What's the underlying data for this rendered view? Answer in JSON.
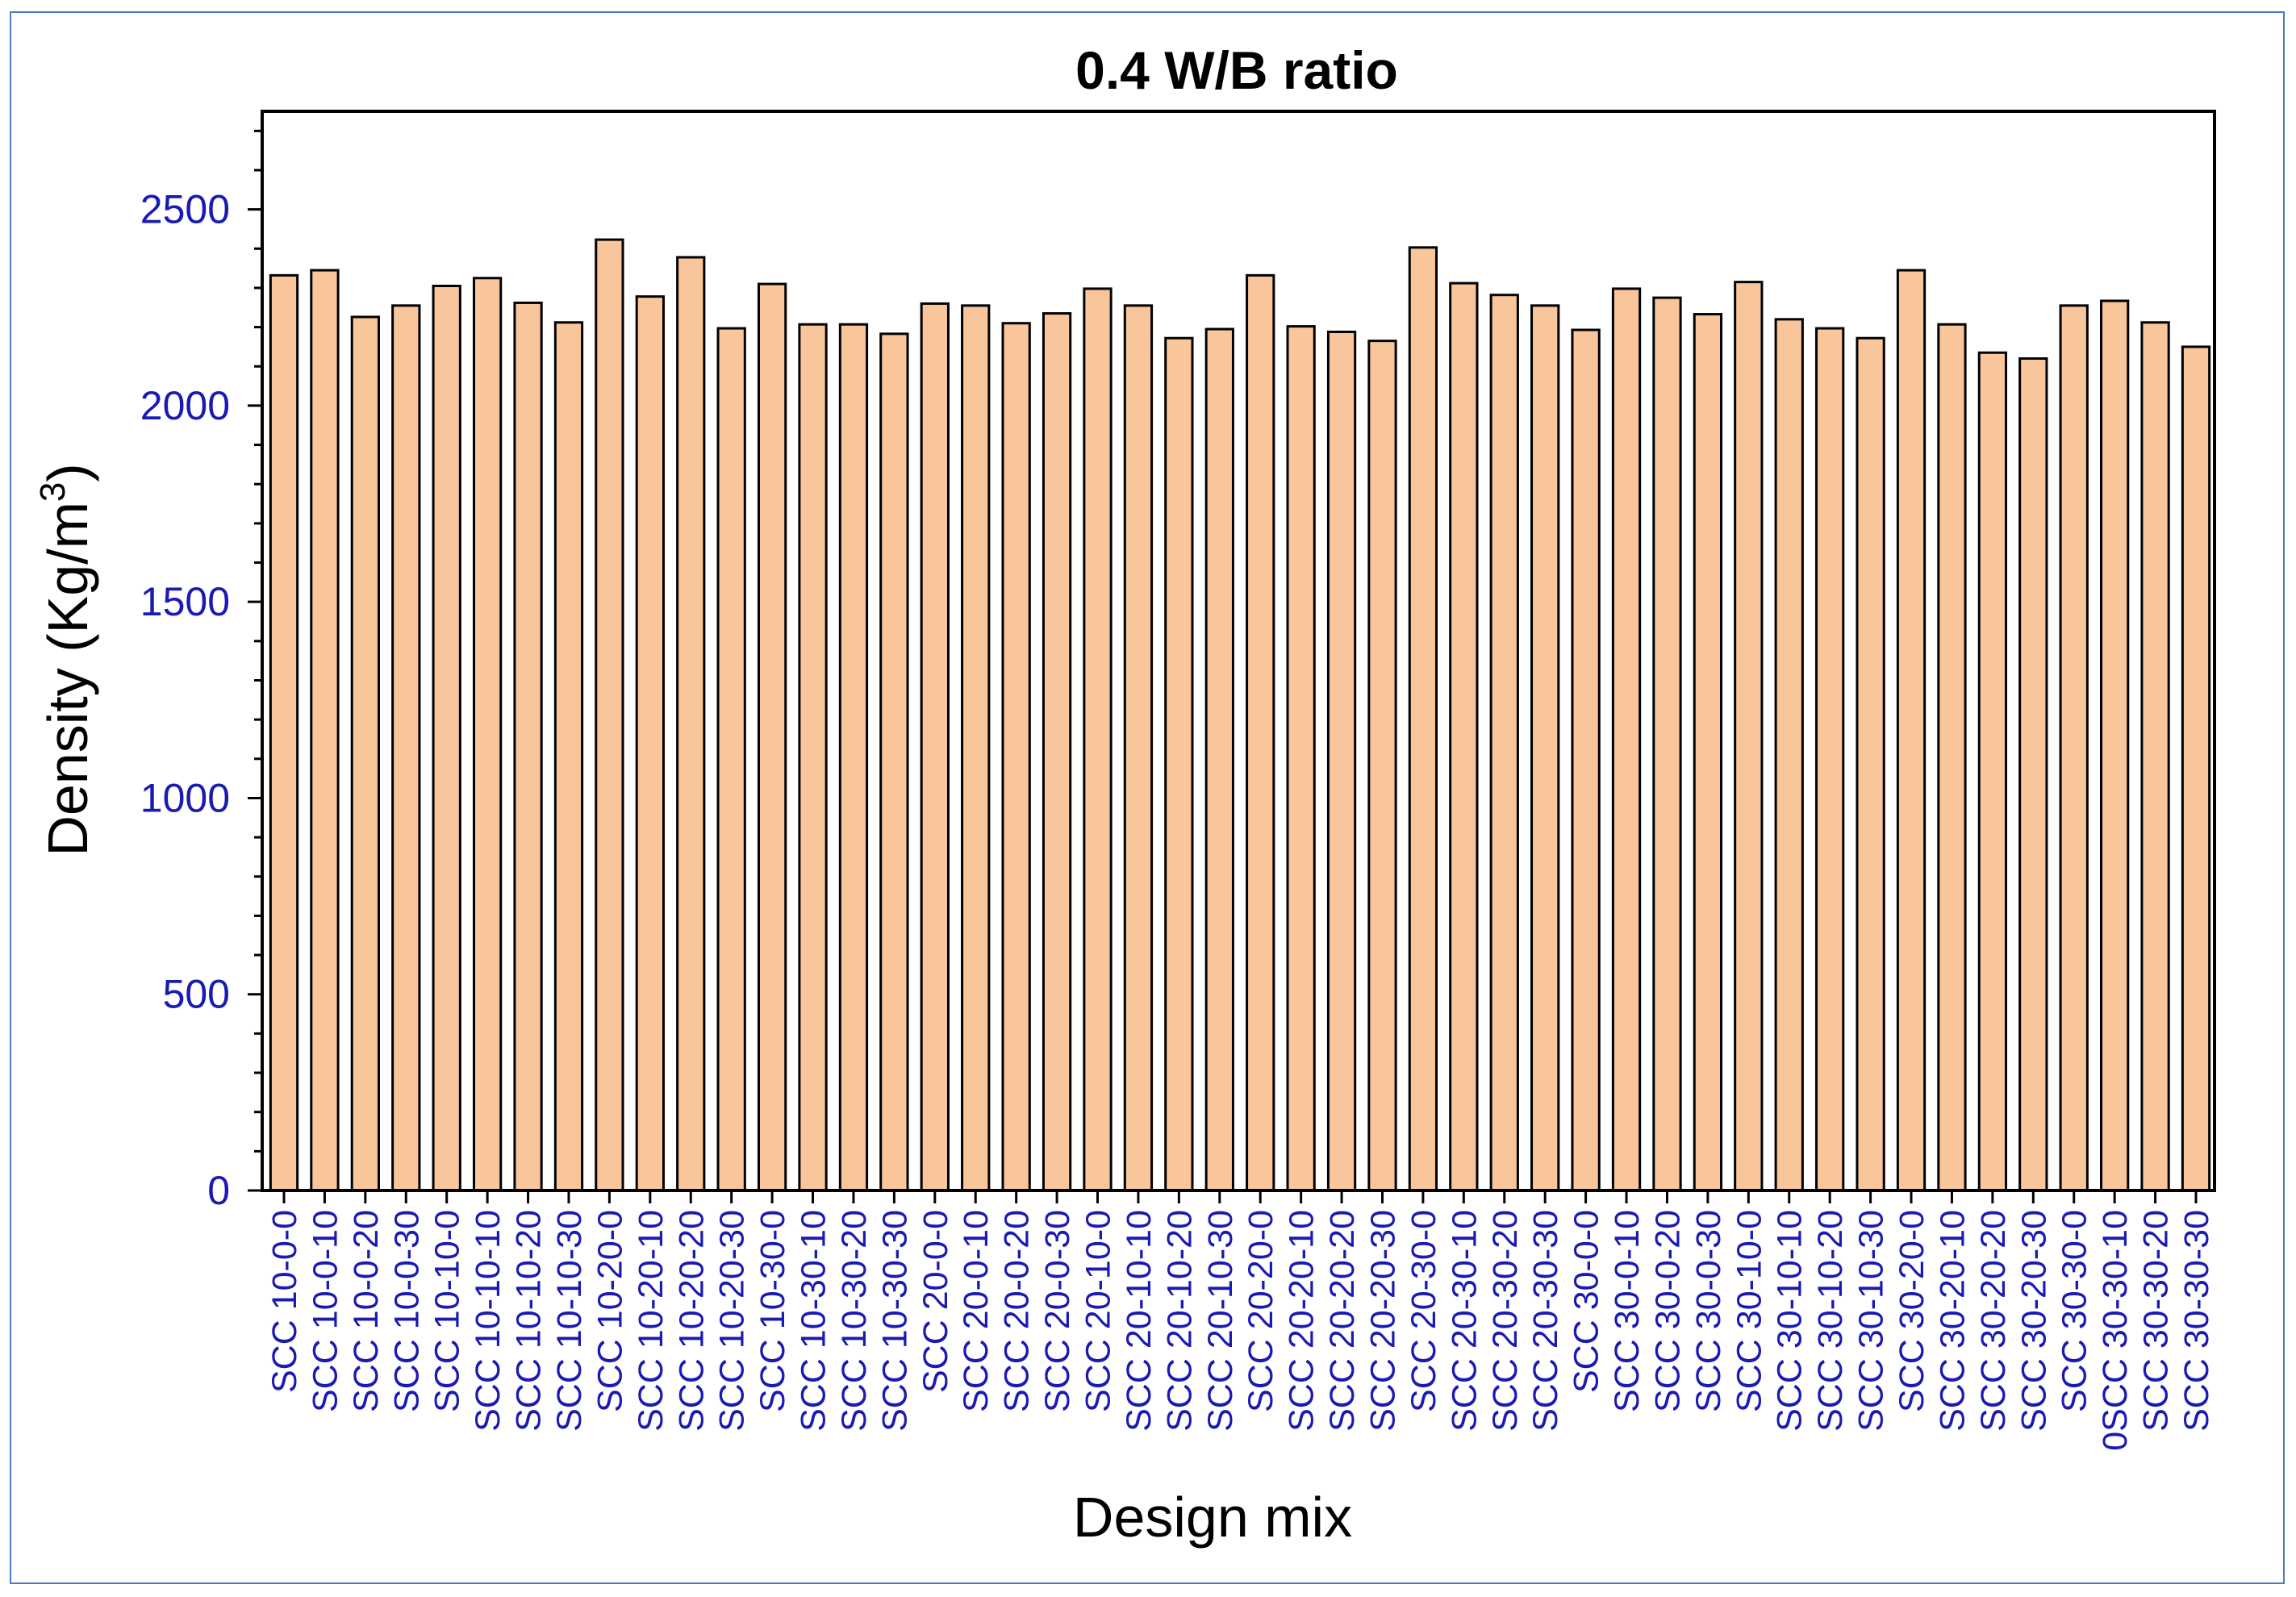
{
  "chart_data": {
    "type": "bar",
    "title": "0.4 W/B ratio",
    "xlabel": "Design mix",
    "ylabel": "Density (Kg/m",
    "ylabel_sup": "3",
    "ylabel_close": ")",
    "ylim": [
      0,
      2750
    ],
    "yticks": [
      0,
      500,
      1000,
      1500,
      2000,
      2500
    ],
    "grid": false,
    "categories": [
      "SCC 10-0-0",
      "SCC 10-0-10",
      "SCC 10-0-20",
      "SCC 10-0-30",
      "SCC 10-10-0",
      "SCC 10-10-10",
      "SCC 10-10-20",
      "SCC 10-10-30",
      "SCC 10-20-0",
      "SCC 10-20-10",
      "SCC 10-20-20",
      "SCC 10-20-30",
      "SCC 10-30-0",
      "SCC 10-30-10",
      "SCC 10-30-20",
      "SCC 10-30-30",
      "SCC 20-0-0",
      "SCC 20-0-10",
      "SCC 20-0-20",
      "SCC 20-0-30",
      "SCC 20-10-0",
      "SCC 20-10-10",
      "SCC 20-10-20",
      "SCC 20-10-30",
      "SCC 20-20-0",
      "SCC 20-20-10",
      "SCC 20-20-20",
      "SCC 20-20-30",
      "SCC 20-30-0",
      "SCC 20-30-10",
      "SCC 20-30-20",
      "SCC 20-30-30",
      "SCC 30-0-0",
      "SCC 30-0-10",
      "SCC 30-0-20",
      "SCC 30-0-30",
      "SCC 30-10-0",
      "SCC 30-10-10",
      "SCC 30-10-20",
      "SCC 30-10-30",
      "SCC 30-20-0",
      "SCC 30-20-10",
      "SCC 30-20-20",
      "SCC 30-20-30",
      "SCC 30-30-0",
      "0SCC 30-30-10",
      "SCC 30-30-20",
      "SCC 30-30-30"
    ],
    "values": [
      2332,
      2345,
      2226,
      2255,
      2305,
      2325,
      2262,
      2212,
      2423,
      2278,
      2378,
      2197,
      2310,
      2207,
      2207,
      2183,
      2260,
      2255,
      2210,
      2235,
      2298,
      2255,
      2172,
      2195,
      2332,
      2202,
      2188,
      2165,
      2403,
      2312,
      2282,
      2255,
      2193,
      2298,
      2275,
      2233,
      2315,
      2220,
      2197,
      2172,
      2345,
      2207,
      2135,
      2120,
      2255,
      2267,
      2212,
      2150
    ],
    "colors": {
      "bar_fill": "#f9c69b",
      "bar_stroke": "#000000",
      "tick_label": "#1a1ab4",
      "axis": "#000000",
      "frame": "#4a7cc9"
    }
  }
}
